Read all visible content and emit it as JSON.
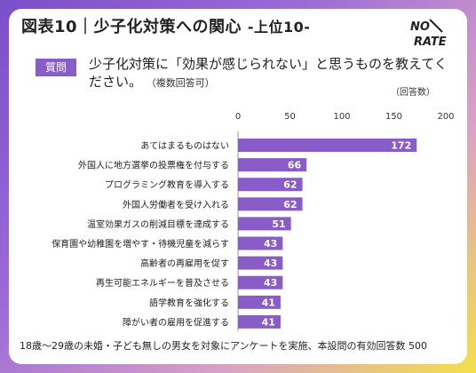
{
  "header": {
    "title": "図表10｜少子化対策への関心",
    "subtitle": "-上位10-",
    "logo_text": "NO RATE"
  },
  "question": {
    "badge": "質問",
    "text": "少子化対策に「効果が感じられない」と思うものを教えてください。",
    "note": "（複数回答可）"
  },
  "unit_label": "（回答数）",
  "footer": {
    "note": "18歳〜29歳の未婚・子ども無しの男女を対象にアンケートを実施、本設問の有効回答数 500"
  },
  "colors": {
    "bar": "#8a5cc8",
    "accent": "#7b4fc9"
  },
  "chart_data": {
    "type": "bar",
    "orientation": "horizontal",
    "categories": [
      "あてはまるものはない",
      "外国人に地方選挙の投票権を付与する",
      "プログラミング教育を導入する",
      "外国人労働者を受け入れる",
      "温室効果ガスの削減目標を達成する",
      "保育園や幼稚園を増やす・待機児童を減らす",
      "高齢者の再雇用を促す",
      "再生可能エネルギーを普及させる",
      "語学教育を強化する",
      "障がい者の雇用を促進する"
    ],
    "values": [
      172,
      66,
      62,
      62,
      51,
      43,
      43,
      43,
      41,
      41
    ],
    "xlim": [
      0,
      200
    ],
    "ticks": [
      0,
      50,
      100,
      150,
      200
    ],
    "data_labels": true,
    "grid": false
  }
}
